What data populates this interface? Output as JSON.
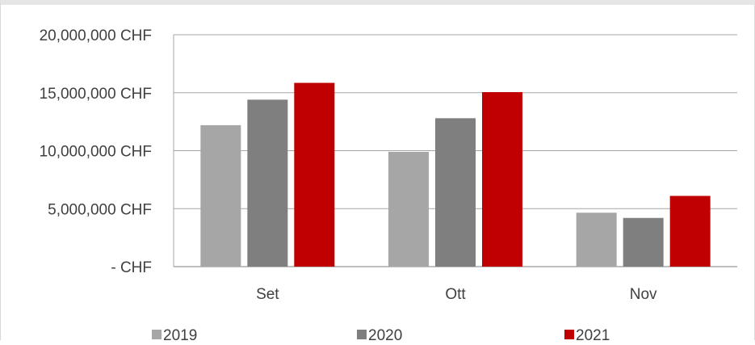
{
  "chart_data": {
    "type": "bar",
    "categories": [
      "Set",
      "Ott",
      "Nov"
    ],
    "series": [
      {
        "name": "2019",
        "color": "#a6a6a6",
        "values": [
          12200000,
          9900000,
          4650000
        ]
      },
      {
        "name": "2020",
        "color": "#7f7f7f",
        "values": [
          14400000,
          12800000,
          4200000
        ]
      },
      {
        "name": "2021",
        "color": "#c00000",
        "values": [
          15850000,
          15050000,
          6100000
        ]
      }
    ],
    "ylim": [
      0,
      20000000
    ],
    "yticks": [
      0,
      5000000,
      10000000,
      15000000,
      20000000
    ],
    "ytick_labels": [
      "-   CHF",
      "5,000,000 CHF",
      "10,000,000 CHF",
      "15,000,000 CHF",
      "20,000,000 CHF"
    ],
    "grid": true,
    "legend": "bottom"
  }
}
